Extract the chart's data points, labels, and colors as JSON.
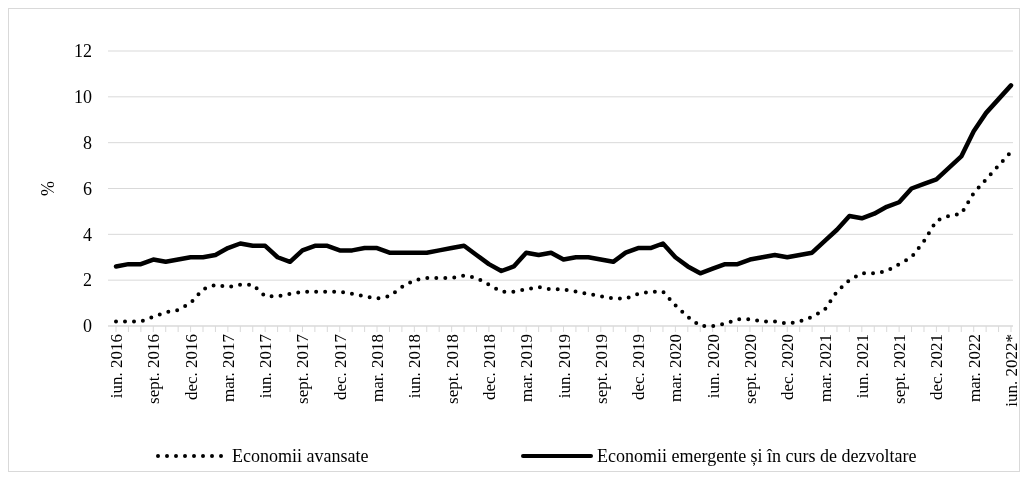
{
  "chart_data": {
    "type": "line",
    "ylabel": "%",
    "ylim": [
      0,
      12
    ],
    "yticks": [
      0,
      2,
      4,
      6,
      8,
      10,
      12
    ],
    "grid": "y",
    "legend": "bottom",
    "categories": [
      "iun. 2016",
      null,
      null,
      "sept. 2016",
      null,
      null,
      "dec. 2016",
      null,
      null,
      "mar. 2017",
      null,
      null,
      "iun. 2017",
      null,
      null,
      "sept. 2017",
      null,
      null,
      "dec. 2017",
      null,
      null,
      "mar. 2018",
      null,
      null,
      "iun. 2018",
      null,
      null,
      "sept. 2018",
      null,
      null,
      "dec. 2018",
      null,
      null,
      "mar. 2019",
      null,
      null,
      "iun. 2019",
      null,
      null,
      "sept. 2019",
      null,
      null,
      "dec. 2019",
      null,
      null,
      "mar. 2020",
      null,
      null,
      "iun. 2020",
      null,
      null,
      "sept. 2020",
      null,
      null,
      "dec. 2020",
      null,
      null,
      "mar. 2021",
      null,
      null,
      "iun. 2021",
      null,
      null,
      "sept. 2021",
      null,
      null,
      "dec. 2021",
      null,
      null,
      "mar. 2022",
      null,
      null,
      "iun. 2022*"
    ],
    "series": [
      {
        "name": "Economii avansate",
        "color": "#000000",
        "line_style": "dotted",
        "values": [
          0.2,
          0.2,
          0.2,
          0.4,
          0.6,
          0.7,
          1.0,
          1.6,
          1.8,
          1.7,
          1.8,
          1.8,
          1.3,
          1.3,
          1.4,
          1.5,
          1.5,
          1.5,
          1.5,
          1.4,
          1.3,
          1.2,
          1.3,
          1.7,
          2.0,
          2.1,
          2.1,
          2.1,
          2.2,
          2.1,
          1.8,
          1.5,
          1.5,
          1.6,
          1.7,
          1.6,
          1.6,
          1.5,
          1.4,
          1.3,
          1.2,
          1.2,
          1.4,
          1.5,
          1.5,
          0.9,
          0.4,
          0.0,
          0.0,
          0.1,
          0.3,
          0.3,
          0.2,
          0.2,
          0.1,
          0.2,
          0.4,
          0.7,
          1.5,
          2.0,
          2.3,
          2.3,
          2.4,
          2.7,
          3.0,
          3.7,
          4.6,
          4.8,
          4.9,
          5.8,
          6.4,
          7.0,
          7.6
        ]
      },
      {
        "name": "Economii emergente și în curs de dezvoltare",
        "color": "#000000",
        "line_style": "solid",
        "values": [
          2.6,
          2.7,
          2.7,
          2.9,
          2.8,
          2.9,
          3.0,
          3.0,
          3.1,
          3.4,
          3.6,
          3.5,
          3.5,
          3.0,
          2.8,
          3.3,
          3.5,
          3.5,
          3.3,
          3.3,
          3.4,
          3.4,
          3.2,
          3.2,
          3.2,
          3.2,
          3.3,
          3.4,
          3.5,
          3.1,
          2.7,
          2.4,
          2.6,
          3.2,
          3.1,
          3.2,
          2.9,
          3.0,
          3.0,
          2.9,
          2.8,
          3.2,
          3.4,
          3.4,
          3.6,
          3.0,
          2.6,
          2.3,
          2.5,
          2.7,
          2.7,
          2.9,
          3.0,
          3.1,
          3.0,
          3.1,
          3.2,
          3.7,
          4.2,
          4.8,
          4.7,
          4.9,
          5.2,
          5.4,
          6.0,
          6.2,
          6.4,
          6.9,
          7.4,
          8.5,
          9.3,
          9.9,
          10.5
        ]
      }
    ]
  }
}
